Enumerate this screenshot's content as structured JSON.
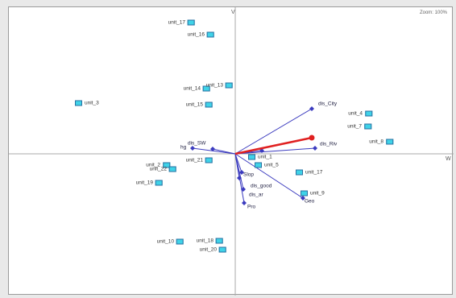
{
  "view": {
    "zoom_label": "Zoom: 100%",
    "axis_v_label": "V",
    "axis_w_label": "W",
    "accent_color": "#3fd3e8",
    "vector_color": "#3b3bbf",
    "highlight_color": "#e02020"
  },
  "units": [
    {
      "label": "unit_17",
      "side": "left"
    },
    {
      "label": "unit_16",
      "side": "left"
    },
    {
      "label": "unit_3",
      "side": "right"
    },
    {
      "label": "unit_14",
      "side": "left"
    },
    {
      "label": "unit_13",
      "side": "left"
    },
    {
      "label": "unit_15",
      "side": "left"
    },
    {
      "label": "unit_4",
      "side": "left"
    },
    {
      "label": "unit_7",
      "side": "left"
    },
    {
      "label": "unit_8",
      "side": "left"
    },
    {
      "label": "unit_21",
      "side": "left"
    },
    {
      "label": "unit_1",
      "side": "right"
    },
    {
      "label": "unit_5",
      "side": "right"
    },
    {
      "label": "unit_2",
      "side": "left"
    },
    {
      "label": "unit_22",
      "side": "left"
    },
    {
      "label": "unit_19",
      "side": "left"
    },
    {
      "label": "unit_17",
      "side": "right"
    },
    {
      "label": "unit_9",
      "side": "right"
    },
    {
      "label": "unit_10",
      "side": "left"
    },
    {
      "label": "unit_18",
      "side": "left"
    },
    {
      "label": "unit_20",
      "side": "left"
    }
  ],
  "variables": [
    {
      "label": "dis_City"
    },
    {
      "label": "dis_Riv"
    },
    {
      "label": "dis_SW"
    },
    {
      "label": "hg"
    },
    {
      "label": "dis_good"
    },
    {
      "label": "dis_ar"
    },
    {
      "label": "Slop"
    },
    {
      "label": "Pro"
    },
    {
      "label": "Geo"
    }
  ]
}
